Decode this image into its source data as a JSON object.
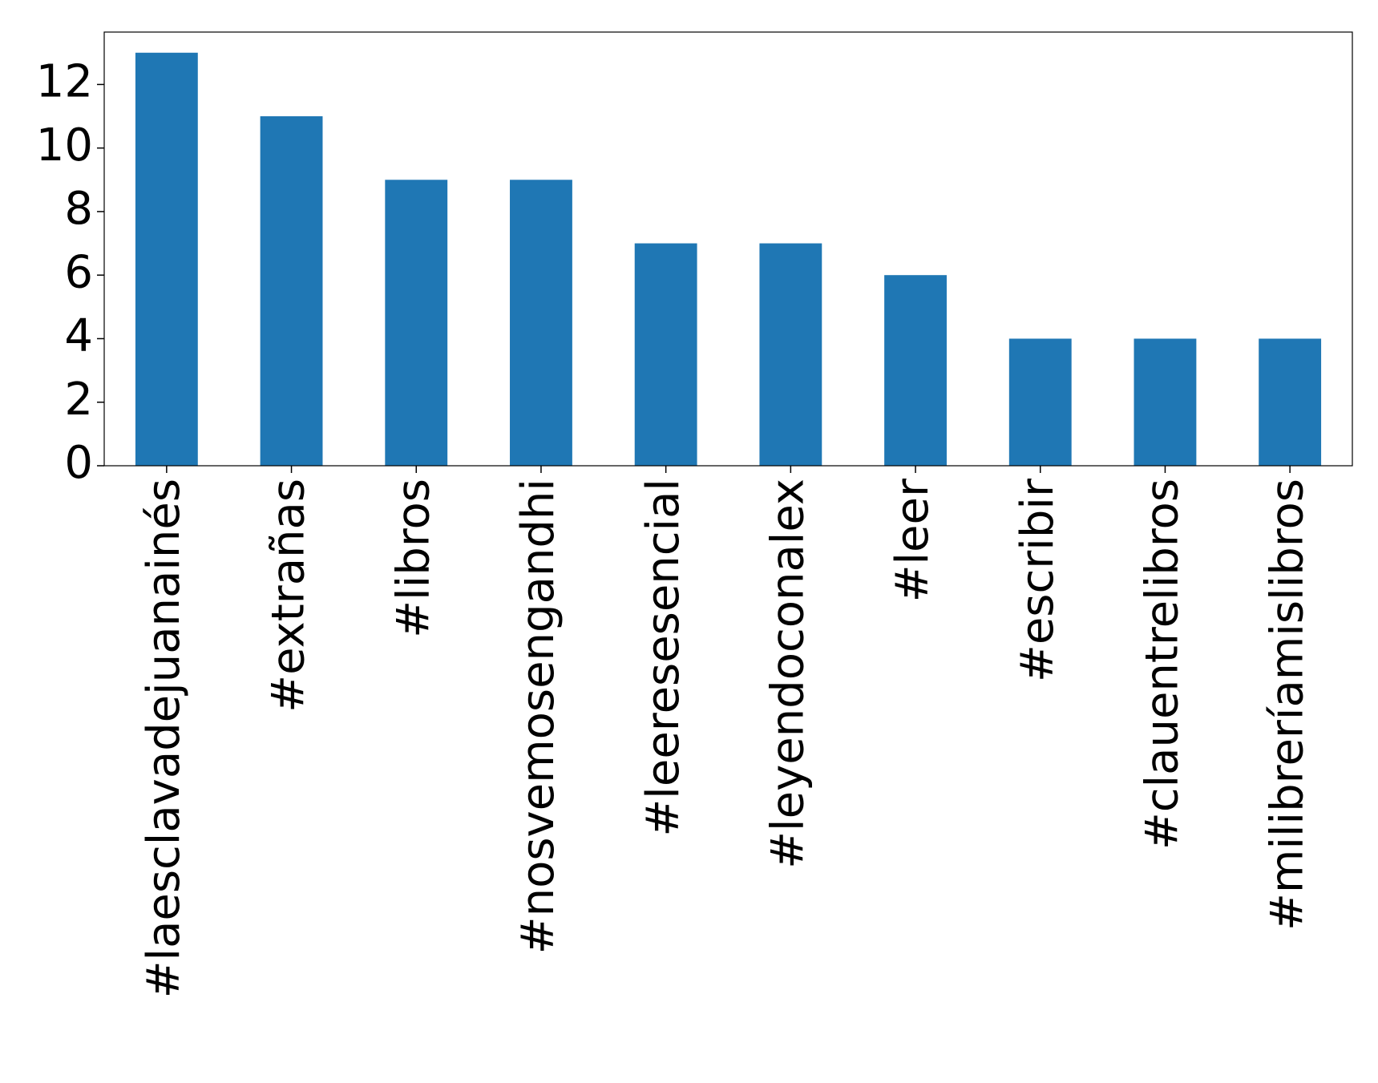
{
  "chart_data": {
    "type": "bar",
    "categories": [
      "#laesclavadejuanainés",
      "#extrañas",
      "#libros",
      "#nosvemosengandhi",
      "#leeresesencial",
      "#leyendoconalex",
      "#leer",
      "#escribir",
      "#clauentrelibros",
      "#milibreríamislibros"
    ],
    "values": [
      13,
      11,
      9,
      9,
      7,
      7,
      6,
      4,
      4,
      4
    ],
    "color": "#1f77b4",
    "ylim": [
      0,
      13.65
    ],
    "yticks": [
      0,
      2,
      4,
      6,
      8,
      10,
      12
    ],
    "grid": false
  }
}
